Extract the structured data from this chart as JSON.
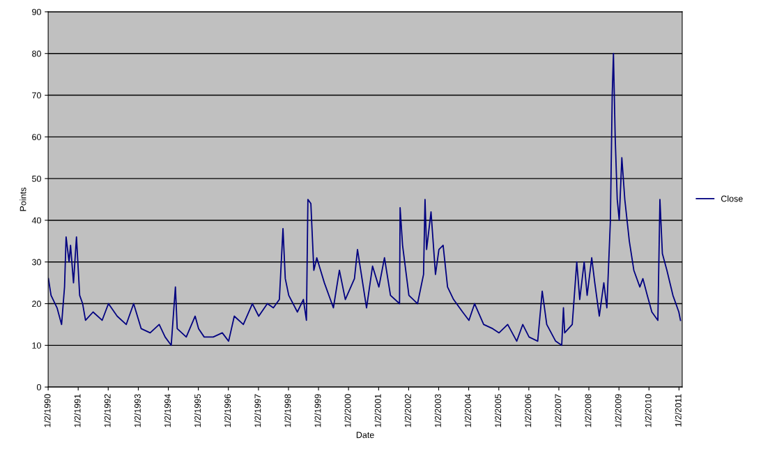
{
  "chart_data": {
    "type": "line",
    "xlabel": "Date",
    "ylabel": "Points",
    "x": [
      "1990-01-05",
      "1990-02-06",
      "1990-04-20",
      "1990-06-14",
      "1990-07-20",
      "1990-08-08",
      "1990-09-13",
      "1990-10-01",
      "1990-11-06",
      "1990-12-12",
      "1991-01-20",
      "1991-02-25",
      "1991-04-01",
      "1991-07-02",
      "1991-10-20",
      "1992-01-05",
      "1992-04-20",
      "1992-08-08",
      "1992-11-06",
      "1993-02-06",
      "1993-05-26",
      "1993-09-13",
      "1993-11-24",
      "1994-02-06",
      "1994-03-29",
      "1994-04-20",
      "1994-08-08",
      "1994-11-24",
      "1995-01-05",
      "1995-03-14",
      "1995-07-02",
      "1995-10-20",
      "1996-01-05",
      "1996-03-14",
      "1996-07-02",
      "1996-10-20",
      "1997-01-05",
      "1997-04-20",
      "1997-07-02",
      "1997-09-13",
      "1997-10-27",
      "1997-11-24",
      "1998-01-05",
      "1998-04-20",
      "1998-07-02",
      "1998-08-08",
      "1998-08-26",
      "1998-10-01",
      "1998-11-06",
      "1998-12-12",
      "1999-03-14",
      "1999-07-02",
      "1999-09-13",
      "1999-11-24",
      "2000-03-14",
      "2000-04-20",
      "2000-08-08",
      "2000-10-20",
      "2001-01-05",
      "2001-03-14",
      "2001-05-26",
      "2001-09-13",
      "2001-09-20",
      "2001-10-20",
      "2002-01-05",
      "2002-04-20",
      "2002-07-02",
      "2002-07-20",
      "2002-08-08",
      "2002-10-01",
      "2002-11-24",
      "2003-01-05",
      "2003-02-25",
      "2003-04-20",
      "2003-07-02",
      "2003-10-20",
      "2004-01-05",
      "2004-03-14",
      "2004-07-02",
      "2004-10-20",
      "2005-01-05",
      "2005-04-20",
      "2005-08-08",
      "2005-10-20",
      "2006-01-05",
      "2006-04-20",
      "2006-06-14",
      "2006-08-08",
      "2006-11-24",
      "2007-02-06",
      "2007-02-27",
      "2007-03-14",
      "2007-06-14",
      "2007-08-08",
      "2007-09-13",
      "2007-11-06",
      "2007-12-12",
      "2008-02-06",
      "2008-03-14",
      "2008-05-08",
      "2008-07-02",
      "2008-08-08",
      "2008-09-20",
      "2008-10-12",
      "2008-10-27",
      "2008-11-17",
      "2008-12-12",
      "2009-01-05",
      "2009-02-06",
      "2009-03-14",
      "2009-05-08",
      "2009-07-02",
      "2009-09-13",
      "2009-10-20",
      "2009-12-12",
      "2010-02-06",
      "2010-04-20",
      "2010-05-15",
      "2010-06-14",
      "2010-08-08",
      "2010-10-20",
      "2010-12-31",
      "2011-01-20"
    ],
    "series": [
      {
        "name": "Close",
        "color": "#000080",
        "values": [
          26,
          22,
          19,
          15,
          24,
          36,
          30,
          34,
          25,
          36,
          22,
          20,
          16,
          18,
          16,
          20,
          17,
          15,
          20,
          14,
          13,
          15,
          12,
          10,
          24,
          14,
          12,
          17,
          14,
          12,
          12,
          13,
          11,
          17,
          15,
          20,
          17,
          20,
          19,
          21,
          38,
          26,
          22,
          18,
          21,
          16,
          45,
          44,
          28,
          31,
          25,
          19,
          28,
          21,
          26,
          33,
          19,
          29,
          24,
          31,
          22,
          20,
          43,
          34,
          22,
          20,
          27,
          45,
          33,
          42,
          27,
          33,
          34,
          24,
          21,
          18,
          16,
          20,
          15,
          14,
          13,
          15,
          11,
          15,
          12,
          11,
          23,
          15,
          11,
          10,
          19,
          13,
          15,
          30,
          21,
          30,
          22,
          31,
          25,
          17,
          25,
          19,
          40,
          70,
          80,
          60,
          45,
          40,
          55,
          45,
          35,
          28,
          24,
          26,
          22,
          18,
          16,
          45,
          32,
          28,
          22,
          18,
          16
        ]
      }
    ],
    "xlim": [
      "1990-01-02",
      "2011-02-10"
    ],
    "ylim": [
      0,
      90
    ],
    "yticks": [
      0,
      10,
      20,
      30,
      40,
      50,
      60,
      70,
      80,
      90
    ],
    "xticks": [
      {
        "value": "1990-01-02",
        "label": "1/2/1990"
      },
      {
        "value": "1991-01-02",
        "label": "1/2/1991"
      },
      {
        "value": "1992-01-02",
        "label": "1/2/1992"
      },
      {
        "value": "1993-01-02",
        "label": "1/2/1993"
      },
      {
        "value": "1994-01-02",
        "label": "1/2/1994"
      },
      {
        "value": "1995-01-02",
        "label": "1/2/1995"
      },
      {
        "value": "1996-01-02",
        "label": "1/2/1996"
      },
      {
        "value": "1997-01-02",
        "label": "1/2/1997"
      },
      {
        "value": "1998-01-02",
        "label": "1/2/1998"
      },
      {
        "value": "1999-01-02",
        "label": "1/2/1999"
      },
      {
        "value": "2000-01-02",
        "label": "1/2/2000"
      },
      {
        "value": "2001-01-02",
        "label": "1/2/2001"
      },
      {
        "value": "2002-01-02",
        "label": "1/2/2002"
      },
      {
        "value": "2003-01-02",
        "label": "1/2/2003"
      },
      {
        "value": "2004-01-02",
        "label": "1/2/2004"
      },
      {
        "value": "2005-01-02",
        "label": "1/2/2005"
      },
      {
        "value": "2006-01-02",
        "label": "1/2/2006"
      },
      {
        "value": "2007-01-02",
        "label": "1/2/2007"
      },
      {
        "value": "2008-01-02",
        "label": "1/2/2008"
      },
      {
        "value": "2009-01-02",
        "label": "1/2/2009"
      },
      {
        "value": "2010-01-02",
        "label": "1/2/2010"
      },
      {
        "value": "2011-01-02",
        "label": "1/2/2011"
      }
    ],
    "grid": "y",
    "legend": "right",
    "marker": "none",
    "line_style": "solid"
  }
}
